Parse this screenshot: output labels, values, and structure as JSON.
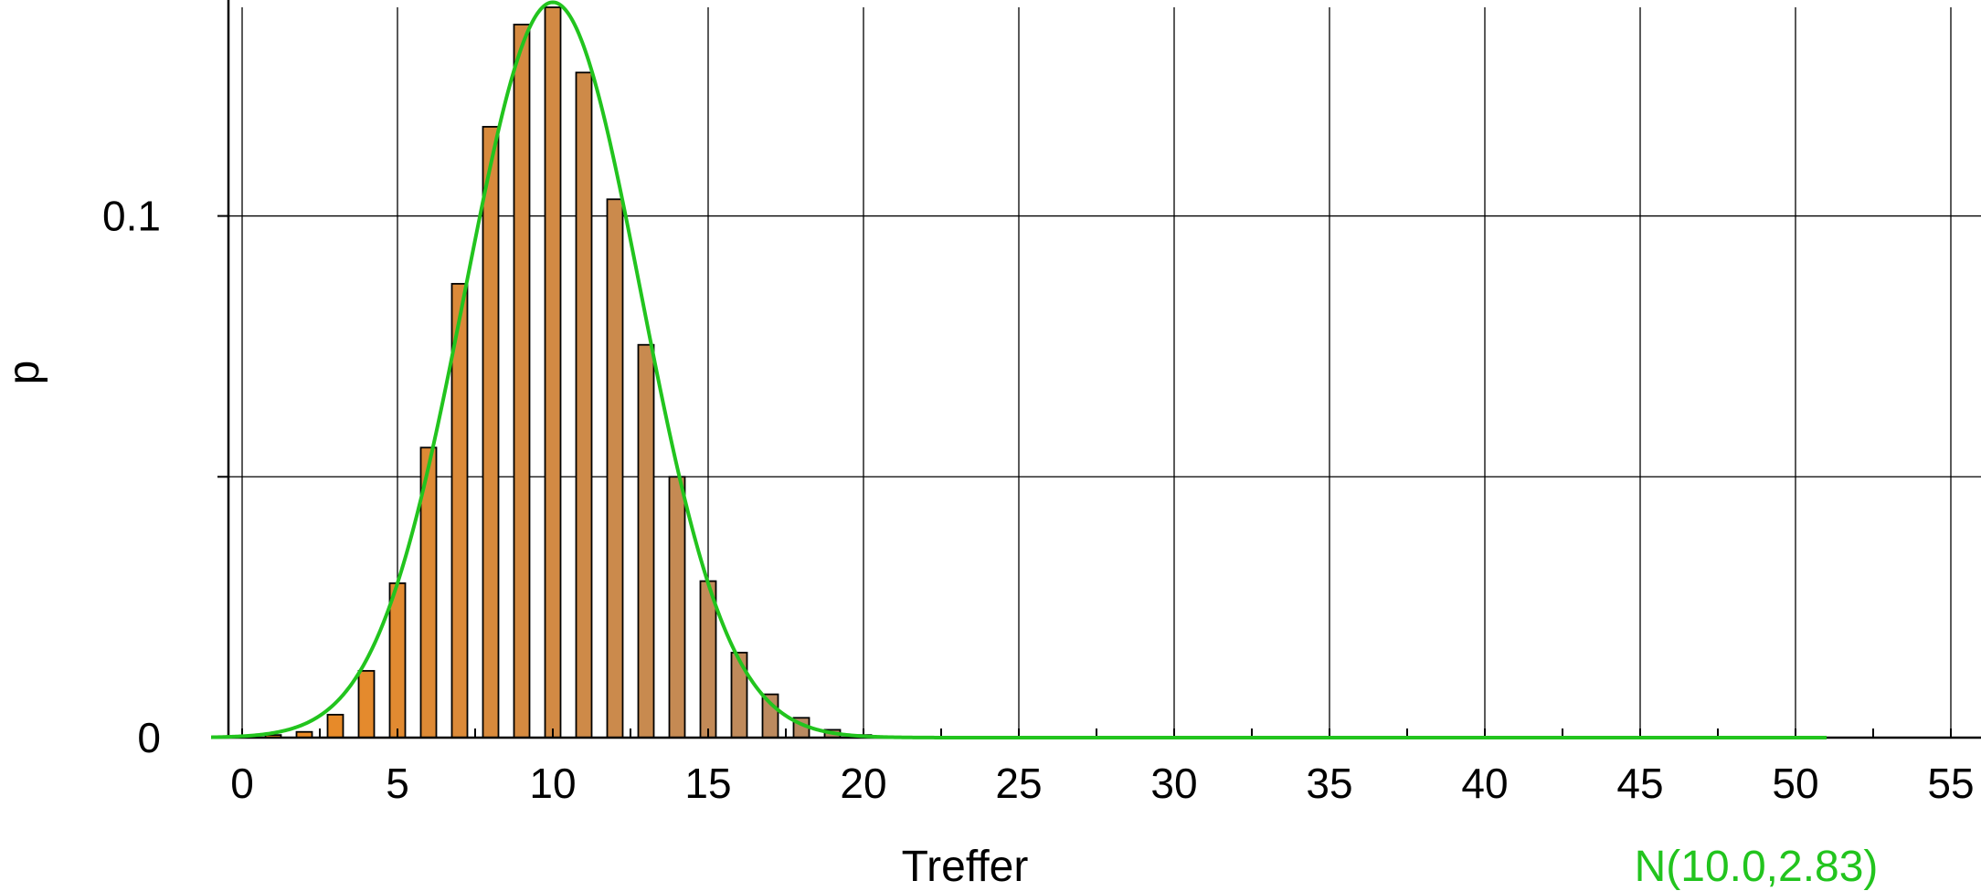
{
  "chart_data": {
    "type": "bar",
    "xlabel": "Treffer",
    "ylabel": "p",
    "xlim": [
      -1,
      56
    ],
    "ylim": [
      0,
      0.14
    ],
    "x_ticks": [
      0,
      5,
      10,
      15,
      20,
      25,
      30,
      35,
      40,
      45,
      50,
      55
    ],
    "y_ticks": [
      0,
      0.05,
      0.1
    ],
    "y_tick_labels": [
      "0",
      "",
      "0.1"
    ],
    "grid": true,
    "categories": [
      0,
      1,
      2,
      3,
      4,
      5,
      6,
      7,
      8,
      9,
      10,
      11,
      12,
      13,
      14,
      15,
      16,
      17,
      18,
      19,
      20
    ],
    "values": [
      0.0001,
      0.0005,
      0.0011,
      0.0044,
      0.0128,
      0.0296,
      0.0556,
      0.087,
      0.1171,
      0.1367,
      0.14,
      0.1275,
      0.1032,
      0.0753,
      0.05,
      0.03,
      0.0163,
      0.0083,
      0.0038,
      0.0015,
      0.0005
    ],
    "bar_color_start": "#f08a1e",
    "bar_color_end": "#b38a6a",
    "curve": {
      "name": "N(10.0,2.83)",
      "mu": 10.0,
      "sigma": 2.83,
      "x_range": [
        -1,
        51
      ],
      "color": "#22c41e"
    },
    "legend_position": "bottom-right"
  }
}
